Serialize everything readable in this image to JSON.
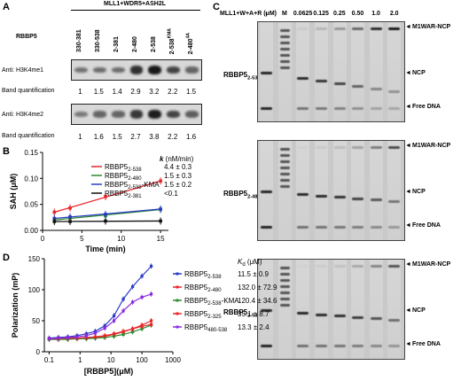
{
  "panels": {
    "a": "A",
    "b": "B",
    "c": "C",
    "d": "D"
  },
  "panel_a": {
    "complex": "MLL1+WDR5+ASH2L",
    "rbbp5_label": "RBBP5",
    "lanes": [
      {
        "main": "330-381",
        "sub": ""
      },
      {
        "main": "330-538",
        "sub": ""
      },
      {
        "main": "2-381",
        "sub": ""
      },
      {
        "main": "2-480",
        "sub": ""
      },
      {
        "main": "2-538",
        "sub": ""
      },
      {
        "main": "2-538",
        "sub": "KMA"
      },
      {
        "main": "2-480",
        "sub": "4A"
      }
    ],
    "blot1": {
      "label": "Anti: H3K4me1",
      "intensities": [
        0.25,
        0.3,
        0.3,
        0.75,
        0.95,
        0.6,
        0.35
      ]
    },
    "quant1": {
      "label": "Band quantification",
      "values": [
        "1",
        "1.5",
        "1.4",
        "2.9",
        "3.2",
        "2.2",
        "1.5"
      ]
    },
    "blot2": {
      "label": "Anti: H3K4me2",
      "intensities": [
        0.2,
        0.35,
        0.35,
        0.7,
        0.9,
        0.6,
        0.4
      ]
    },
    "quant2": {
      "label": "Band quantification",
      "values": [
        "1",
        "1.6",
        "1.5",
        "2.7",
        "3.8",
        "2.2",
        "1.6"
      ]
    }
  },
  "panel_b": {
    "k_header": "k",
    "k_unit": " (nM/min)",
    "legend": [
      {
        "base": "RBBP5",
        "sub": "2-538",
        "suffix": "",
        "k": "4.4 ± 0.3",
        "color": "#e8262a"
      },
      {
        "base": "RBBP5",
        "sub": "2-480",
        "suffix": "",
        "k": "1.5 ± 0.3",
        "color": "#2e8b2e"
      },
      {
        "base": "RBBP5",
        "sub": "2-538",
        "suffix": "-KMA",
        "k": "1.5 ± 0.2",
        "color": "#2b3cc4"
      },
      {
        "base": "RBBP5",
        "sub": "2-381",
        "suffix": "",
        "k": "<0.1",
        "color": "#111111"
      }
    ],
    "chart_data": {
      "type": "line",
      "xlabel": "Time (min)",
      "ylabel": "SAH (μM)",
      "xlim": [
        0,
        16
      ],
      "ylim": [
        0,
        0.15
      ],
      "xticks": [
        0,
        5,
        10,
        15
      ],
      "yticks": [
        0,
        0.05,
        0.1,
        0.15
      ],
      "ytick_labels": [
        "0.00",
        "0.05",
        "0.10",
        "0.15"
      ],
      "series": [
        {
          "name": "RBBP5 2-538",
          "color": "#e8262a",
          "x": [
            1.5,
            3.5,
            8,
            15
          ],
          "y": [
            0.035,
            0.043,
            0.065,
            0.095
          ]
        },
        {
          "name": "RBBP5 2-480",
          "color": "#2e8b2e",
          "x": [
            1.5,
            3.5,
            8,
            15
          ],
          "y": [
            0.02,
            0.024,
            0.028,
            0.04
          ]
        },
        {
          "name": "RBBP5 2-538-KMA",
          "color": "#2b3cc4",
          "x": [
            1.5,
            3.5,
            8,
            15
          ],
          "y": [
            0.023,
            0.026,
            0.031,
            0.041
          ]
        },
        {
          "name": "RBBP5 2-381",
          "color": "#111111",
          "x": [
            1.5,
            3.5,
            8,
            15
          ],
          "y": [
            0.017,
            0.017,
            0.018,
            0.018
          ]
        }
      ]
    }
  },
  "panel_c": {
    "header": "MLL1+W+A+R (μM)",
    "lane_labels": [
      "-",
      "M",
      "0.0625",
      "0.125",
      "0.25",
      "0.50",
      "1.0",
      "2.0"
    ],
    "right_labels": {
      "top": "M1WAR-NCP",
      "mid": "NCP",
      "bottom": "Free DNA"
    },
    "gels": [
      {
        "base": "RBBP5",
        "sub": "2-538",
        "suffix": ""
      },
      {
        "base": "RBBP5",
        "sub": "2-480",
        "suffix": ""
      },
      {
        "base": "RBBP5",
        "sub": "2-538",
        "suffix": "-KMA"
      }
    ]
  },
  "panel_d": {
    "kd_header": "K",
    "kd_sub": "d",
    "kd_unit": " (μM)",
    "legend": [
      {
        "base": "RBBP5",
        "sub": "2-538",
        "suffix": "",
        "kd": "11.5 ± 0.9",
        "color": "#2b3cc4"
      },
      {
        "base": "RBBP5",
        "sub": "2-480",
        "suffix": "",
        "kd": "132.0 ± 72.9",
        "color": "#e8262a"
      },
      {
        "base": "RBBP5",
        "sub": "2-538",
        "suffix": "-KMA",
        "kd": "120.4 ± 34.6",
        "color": "#2e8b2e"
      },
      {
        "base": "RBBP5",
        "sub": "2-325",
        "suffix": "",
        "kd": "35.1 ± 8.7",
        "color": "#e8262a"
      },
      {
        "base": "RBBP5",
        "sub": "480-538",
        "suffix": "",
        "kd": "13.3 ± 2.4",
        "color": "#8a2be2"
      }
    ],
    "chart_data": {
      "type": "scatter",
      "xlabel": "[RBBP5](μM)",
      "ylabel": "Polarization (mP)",
      "xscale": "log",
      "xlim": [
        0.07,
        1000
      ],
      "ylim": [
        0,
        150
      ],
      "xticks": [
        0.1,
        1,
        10,
        100,
        1000
      ],
      "xtick_labels": [
        "0.1",
        "1",
        "10",
        "100",
        "1000"
      ],
      "yticks": [
        0,
        50,
        100,
        150
      ],
      "x": [
        0.1,
        0.2,
        0.4,
        0.8,
        1.6,
        3.1,
        6.3,
        12.5,
        25,
        50,
        100,
        200
      ],
      "series": [
        {
          "name": "RBBP5 2-538",
          "color": "#2b3cc4",
          "y": [
            22,
            23,
            24,
            26,
            29,
            33,
            42,
            58,
            85,
            105,
            122,
            138
          ]
        },
        {
          "name": "RBBP5 2-480",
          "color": "#e8262a",
          "y": [
            20,
            20,
            21,
            21,
            22,
            23,
            25,
            28,
            32,
            37,
            43,
            50
          ]
        },
        {
          "name": "RBBP5 2-538-KMA",
          "color": "#2e8b2e",
          "y": [
            20,
            20,
            20,
            21,
            21,
            22,
            23,
            25,
            28,
            32,
            37,
            43
          ]
        },
        {
          "name": "RBBP5 2-325",
          "color": "#e8262a",
          "y": [
            21,
            21,
            22,
            22,
            23,
            24,
            26,
            29,
            33,
            37,
            41,
            44
          ]
        },
        {
          "name": "RBBP5 480-538",
          "color": "#8a2be2",
          "y": [
            21,
            22,
            23,
            24,
            26,
            30,
            38,
            50,
            66,
            80,
            88,
            93
          ]
        }
      ]
    }
  }
}
